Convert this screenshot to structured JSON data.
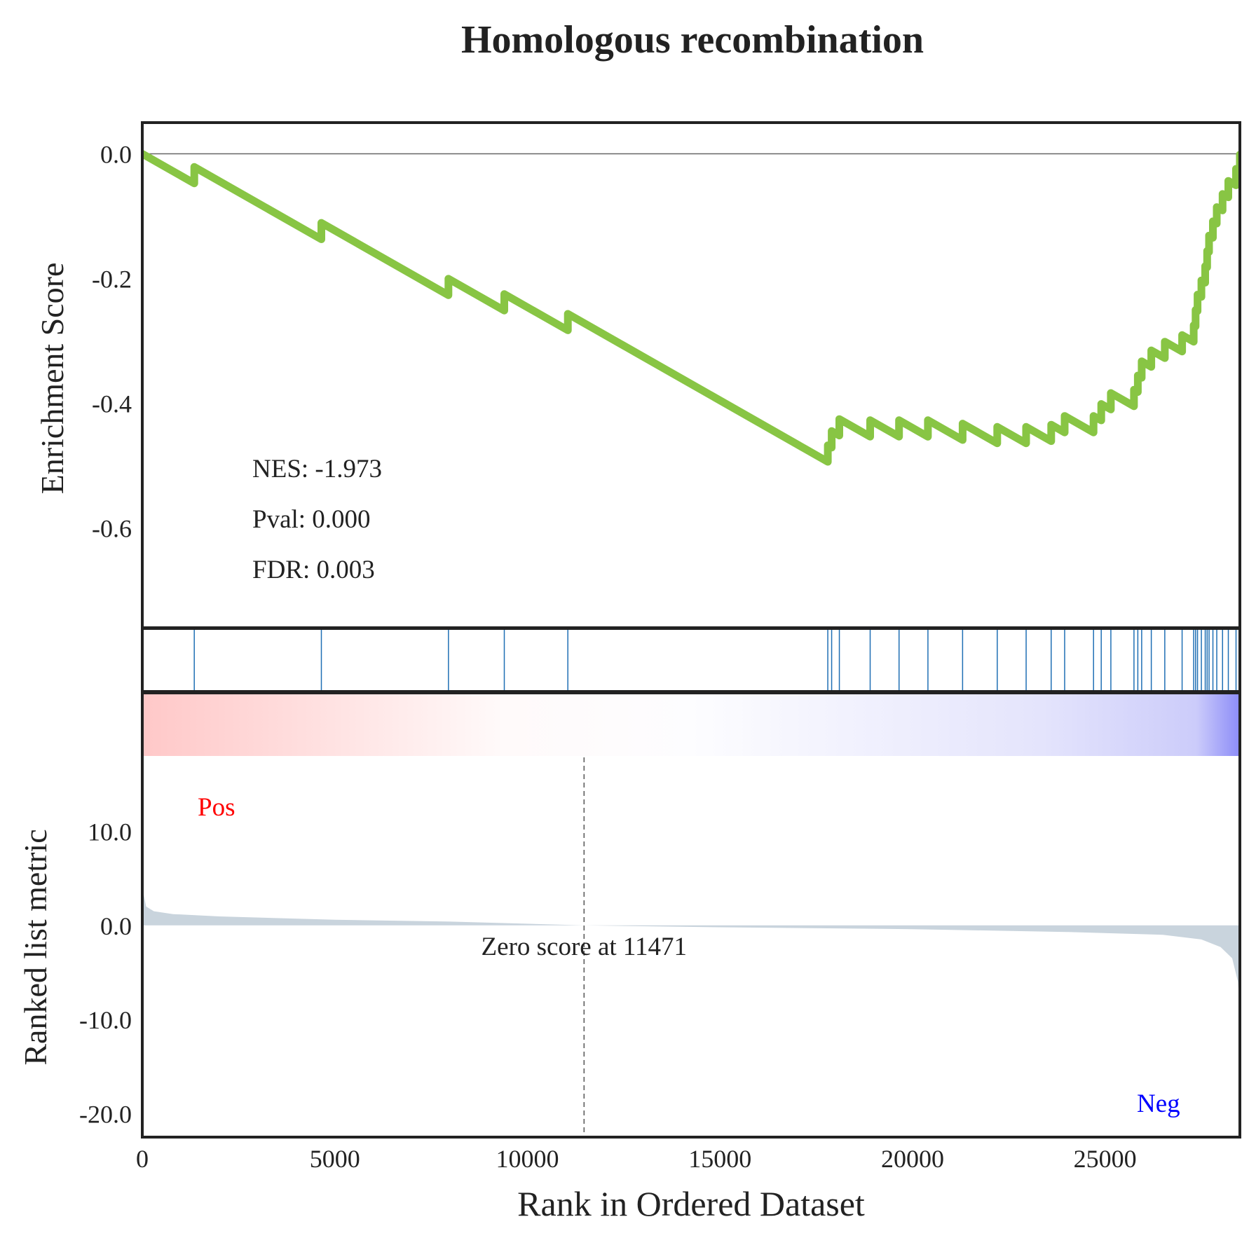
{
  "chart_data": {
    "type": "line",
    "title": "Homologous recombination",
    "es_panel": {
      "ylabel": "Enrichment Score",
      "ylim": [
        -0.76,
        0.05
      ],
      "yticks": [
        0.0,
        -0.2,
        -0.4,
        -0.6
      ],
      "ytick_labels": [
        "0.0",
        "-0.2",
        "-0.4",
        "-0.6"
      ],
      "color": "#88c544",
      "stats": [
        "NES: -1.973",
        "Pval: 0.000",
        "FDR: 0.003"
      ],
      "hit_ranks": [
        1350,
        4650,
        7950,
        9400,
        11050,
        17800,
        17900,
        18100,
        18900,
        19650,
        20400,
        21300,
        22200,
        22950,
        23600,
        23950,
        24700,
        24900,
        25150,
        25750,
        25850,
        25950,
        26200,
        26550,
        27000,
        27300,
        27350,
        27400,
        27500,
        27600,
        27650,
        27700,
        27800,
        27900,
        28050,
        28200,
        28400,
        28500
      ],
      "hit_color": "#1f6fb4"
    },
    "rank_panel": {
      "ylabel": "Ranked list metric",
      "ylim": [
        -22.5,
        18
      ],
      "yticks": [
        10,
        0,
        -10,
        -20
      ],
      "ytick_labels": [
        "10.0",
        "0.0",
        "-10.0",
        "-20.0"
      ],
      "fill_color": "#c9d4dd",
      "zero_cross": 11471,
      "zero_label": "Zero score at 11471",
      "pos_label": "Pos",
      "neg_label": "Neg",
      "pos_color": "#ff0000",
      "neg_color": "#0000ff",
      "metric_points": [
        [
          0,
          4.0
        ],
        [
          100,
          2.0
        ],
        [
          300,
          1.5
        ],
        [
          800,
          1.2
        ],
        [
          2000,
          0.95
        ],
        [
          5000,
          0.6
        ],
        [
          8000,
          0.4
        ],
        [
          11471,
          0.0
        ],
        [
          15000,
          -0.2
        ],
        [
          20000,
          -0.4
        ],
        [
          24000,
          -0.7
        ],
        [
          26500,
          -1.0
        ],
        [
          27500,
          -1.5
        ],
        [
          28000,
          -2.3
        ],
        [
          28300,
          -3.5
        ],
        [
          28450,
          -6.0
        ],
        [
          28500,
          -9.0
        ]
      ]
    },
    "xlabel": "Rank in Ordered Dataset",
    "xlim": [
      0,
      28500
    ],
    "xticks": [
      0,
      5000,
      10000,
      15000,
      20000,
      25000
    ],
    "xtick_labels": [
      "0",
      "5000",
      "10000",
      "15000",
      "20000",
      "25000"
    ]
  }
}
